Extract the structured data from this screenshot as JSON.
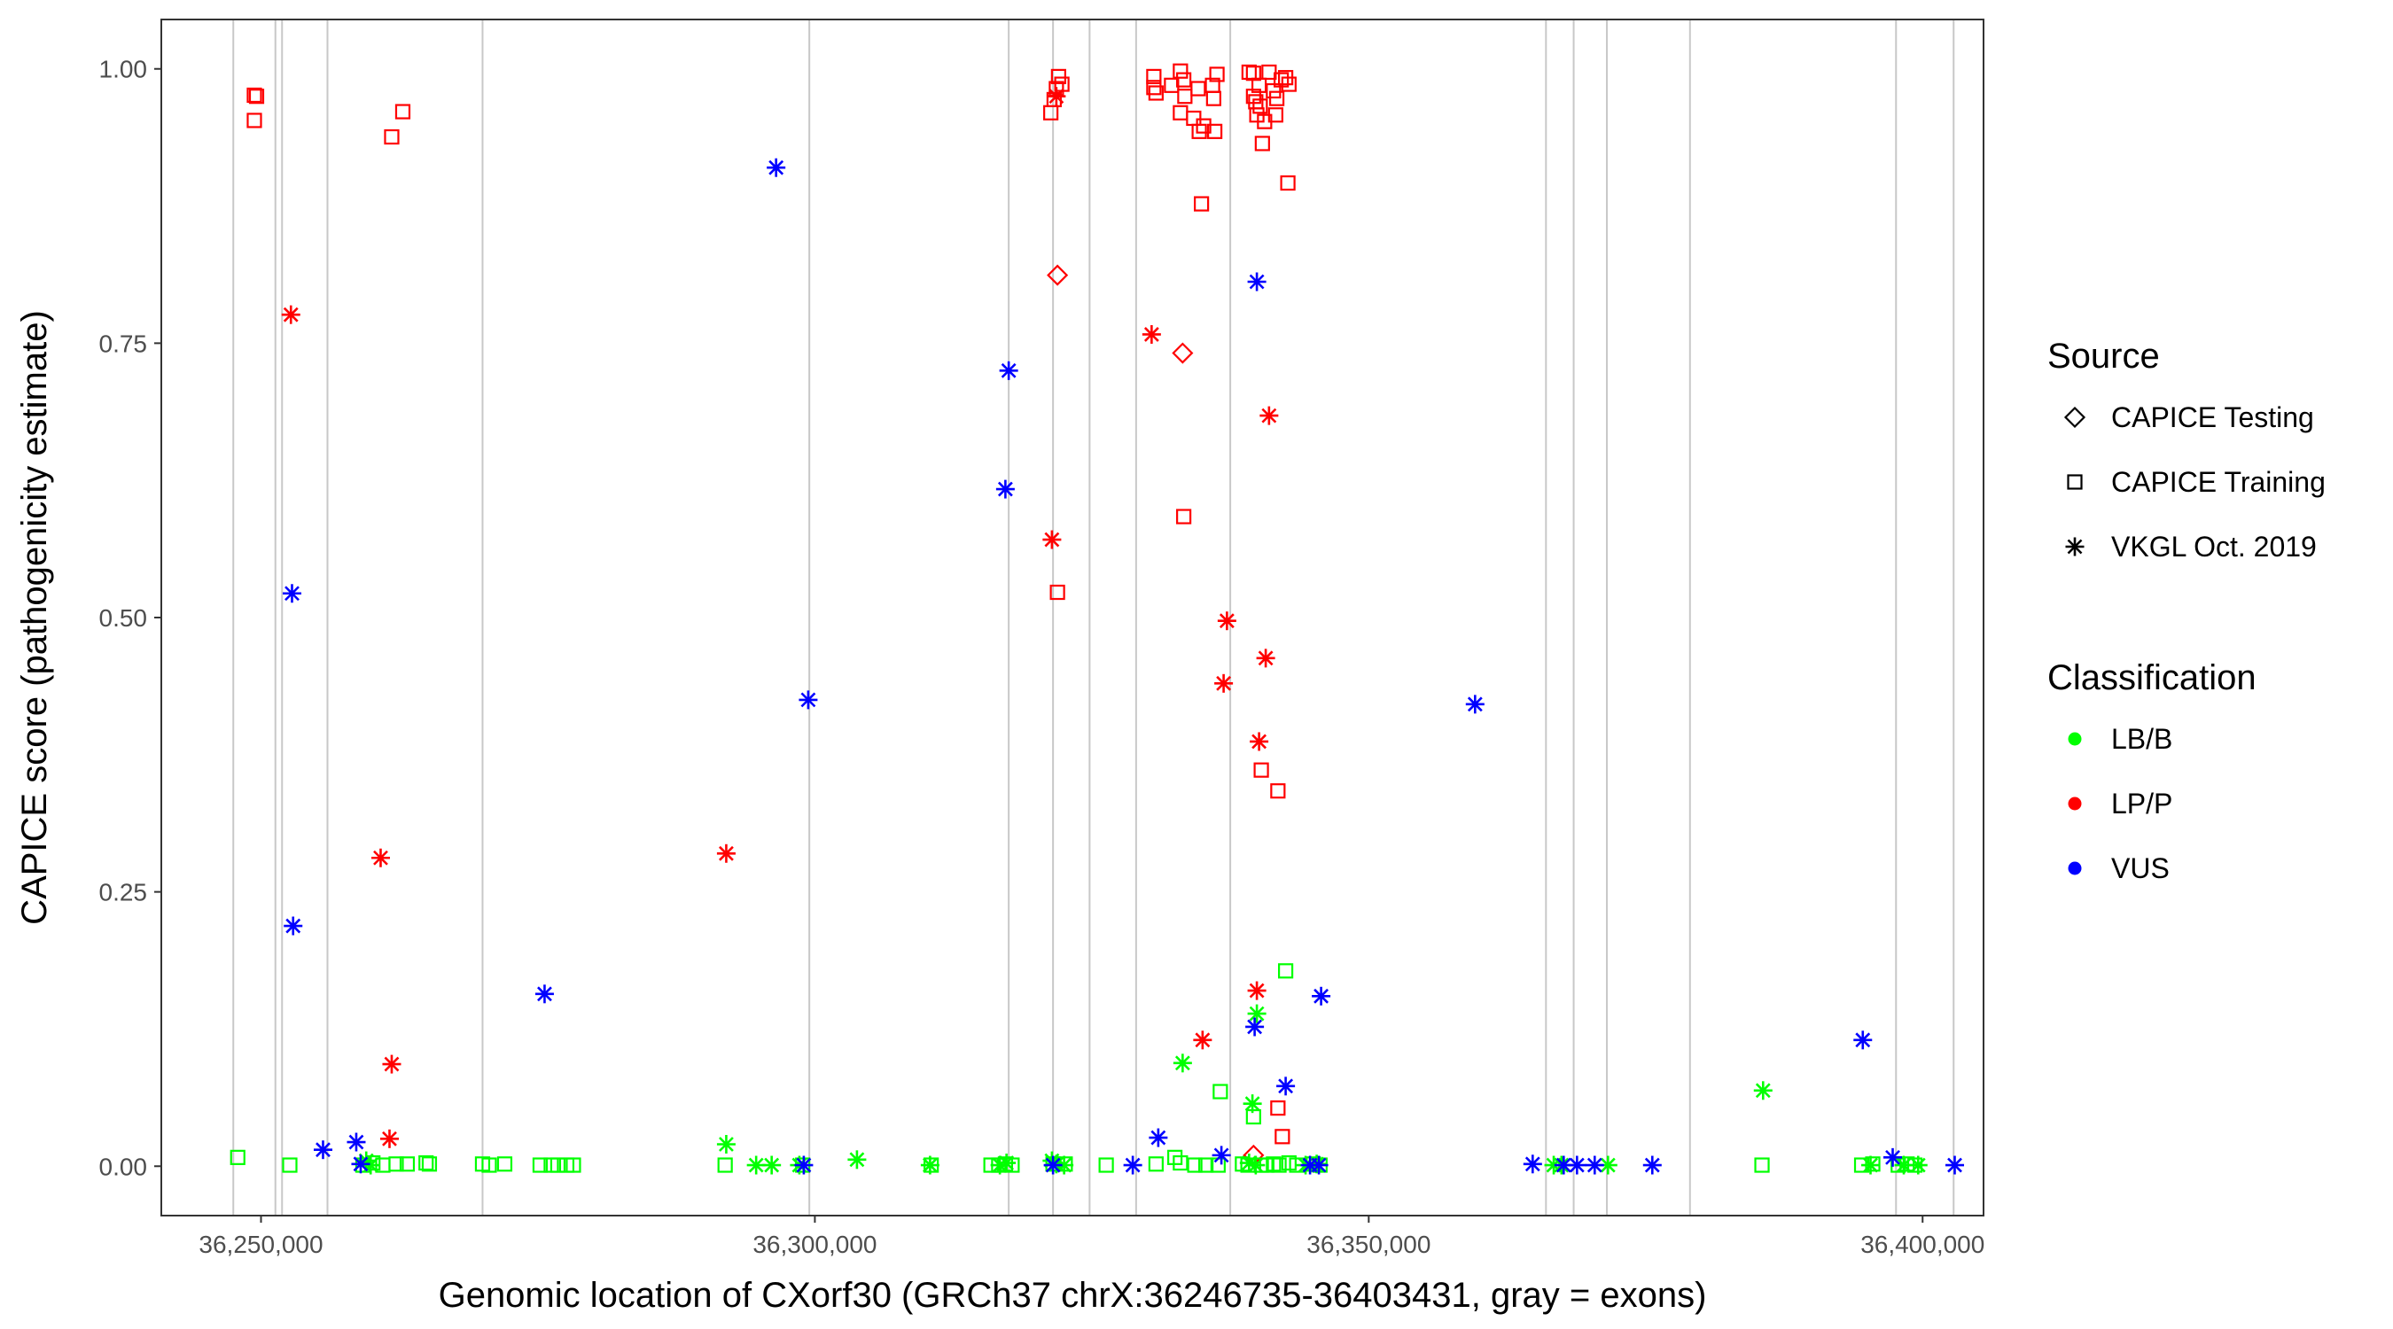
{
  "chart_data": {
    "type": "scatter",
    "title": "",
    "xlabel": "Genomic location of CXorf30 (GRCh37 chrX:36246735-36403431, gray = exons)",
    "ylabel": "CAPICE score (pathogenicity estimate)",
    "xlim": [
      36241000,
      36405500
    ],
    "ylim": [
      -0.045,
      1.045
    ],
    "x_ticks": [
      36250000,
      36300000,
      36350000,
      36400000
    ],
    "x_tick_labels": [
      "36,250,000",
      "36,300,000",
      "36,350,000",
      "36,400,000"
    ],
    "y_ticks": [
      0,
      0.25,
      0.5,
      0.75,
      1
    ],
    "y_tick_labels": [
      "0.00",
      "0.25",
      "0.50",
      "0.75",
      "1.00"
    ],
    "grid": false,
    "exon_lines": [
      36247500,
      36251300,
      36251900,
      36256000,
      36270000,
      36299500,
      36317500,
      36321500,
      36324800,
      36329000,
      36337500,
      36366000,
      36368500,
      36371500,
      36379000,
      36397600,
      36402800
    ],
    "color_map": {
      "LB/B": "#00ff00",
      "LP/P": "#ff0000",
      "VUS": "#0000ff"
    },
    "legend": {
      "placement": "right",
      "source_title": "Source",
      "source_items": [
        {
          "label": "CAPICE Testing",
          "shape": "diamond"
        },
        {
          "label": "CAPICE Training",
          "shape": "square"
        },
        {
          "label": "VKGL Oct. 2019",
          "shape": "asterisk"
        }
      ],
      "class_title": "Classification",
      "class_items": [
        {
          "label": "LB/B",
          "color": "#00ff00"
        },
        {
          "label": "LP/P",
          "color": "#ff0000"
        },
        {
          "label": "VUS",
          "color": "#0000ff"
        }
      ]
    },
    "series": [
      {
        "source": "CAPICE Training",
        "class": "LP/P",
        "shape": "square",
        "color": "#ff0000",
        "points": [
          [
            36249400,
            0.976
          ],
          [
            36249600,
            0.975
          ],
          [
            36249400,
            0.953
          ],
          [
            36261800,
            0.938
          ],
          [
            36262800,
            0.961
          ],
          [
            36321300,
            0.96
          ],
          [
            36321600,
            0.972
          ],
          [
            36321800,
            0.982
          ],
          [
            36322000,
            0.993
          ],
          [
            36322300,
            0.986
          ],
          [
            36321900,
            0.523
          ],
          [
            36330600,
            0.993
          ],
          [
            36330600,
            0.983
          ],
          [
            36330800,
            0.978
          ],
          [
            36332200,
            0.985
          ],
          [
            36333000,
            0.998
          ],
          [
            36333300,
            0.99
          ],
          [
            36333000,
            0.96
          ],
          [
            36333400,
            0.975
          ],
          [
            36334200,
            0.955
          ],
          [
            36334600,
            0.982
          ],
          [
            36334700,
            0.943
          ],
          [
            36334900,
            0.877
          ],
          [
            36335100,
            0.948
          ],
          [
            36335900,
            0.985
          ],
          [
            36336000,
            0.973
          ],
          [
            36336100,
            0.943
          ],
          [
            36336300,
            0.995
          ],
          [
            36333300,
            0.592
          ],
          [
            36339200,
            0.997
          ],
          [
            36339600,
            0.996
          ],
          [
            36339600,
            0.975
          ],
          [
            36339800,
            0.97
          ],
          [
            36340200,
            0.966
          ],
          [
            36339900,
            0.958
          ],
          [
            36340100,
            0.985
          ],
          [
            36340600,
            0.952
          ],
          [
            36340400,
            0.932
          ],
          [
            36341000,
            0.997
          ],
          [
            36341400,
            0.98
          ],
          [
            36341700,
            0.973
          ],
          [
            36341600,
            0.958
          ],
          [
            36342100,
            0.99
          ],
          [
            36342500,
            0.992
          ],
          [
            36342800,
            0.986
          ],
          [
            36342700,
            0.896
          ],
          [
            36340300,
            0.361
          ],
          [
            36341800,
            0.342
          ],
          [
            36341800,
            0.053
          ],
          [
            36342200,
            0.027
          ]
        ]
      },
      {
        "source": "CAPICE Testing",
        "class": "LP/P",
        "shape": "diamond",
        "color": "#ff0000",
        "points": [
          [
            36321900,
            0.812
          ],
          [
            36333200,
            0.741
          ],
          [
            36339600,
            0.01
          ]
        ]
      },
      {
        "source": "VKGL Oct. 2019",
        "class": "LP/P",
        "shape": "asterisk",
        "color": "#ff0000",
        "points": [
          [
            36252700,
            0.776
          ],
          [
            36260800,
            0.281
          ],
          [
            36261800,
            0.093
          ],
          [
            36261600,
            0.025
          ],
          [
            36292000,
            0.285
          ],
          [
            36321400,
            0.571
          ],
          [
            36321800,
            0.975
          ],
          [
            36330400,
            0.758
          ],
          [
            36335000,
            0.115
          ],
          [
            36337200,
            0.497
          ],
          [
            36336900,
            0.44
          ],
          [
            36341000,
            0.684
          ],
          [
            36340700,
            0.463
          ],
          [
            36340100,
            0.387
          ],
          [
            36339900,
            0.16
          ]
        ]
      },
      {
        "source": "CAPICE Training",
        "class": "LB/B",
        "shape": "square",
        "color": "#00ff00",
        "points": [
          [
            36247900,
            0.008
          ],
          [
            36252600,
            0.001
          ],
          [
            36259200,
            0.001
          ],
          [
            36260100,
            0.003
          ],
          [
            36261000,
            0.001
          ],
          [
            36262200,
            0.002
          ],
          [
            36263200,
            0.002
          ],
          [
            36264900,
            0.003
          ],
          [
            36265200,
            0.002
          ],
          [
            36270000,
            0.002
          ],
          [
            36270600,
            0.001
          ],
          [
            36272000,
            0.002
          ],
          [
            36275200,
            0.001
          ],
          [
            36276200,
            0.001
          ],
          [
            36276800,
            0.001
          ],
          [
            36277600,
            0.001
          ],
          [
            36278200,
            0.001
          ],
          [
            36291900,
            0.001
          ],
          [
            36298900,
            0.001
          ],
          [
            36310500,
            0.001
          ],
          [
            36315900,
            0.001
          ],
          [
            36316600,
            0.001
          ],
          [
            36317200,
            0.002
          ],
          [
            36317800,
            0.001
          ],
          [
            36321500,
            0.002
          ],
          [
            36322600,
            0.002
          ],
          [
            36326300,
            0.001
          ],
          [
            36330800,
            0.002
          ],
          [
            36332500,
            0.008
          ],
          [
            36333000,
            0.003
          ],
          [
            36334300,
            0.001
          ],
          [
            36335300,
            0.001
          ],
          [
            36336400,
            0.001
          ],
          [
            36336600,
            0.068
          ],
          [
            36339600,
            0.045
          ],
          [
            36338600,
            0.002
          ],
          [
            36339100,
            0.001
          ],
          [
            36340300,
            0.001
          ],
          [
            36340800,
            0.001
          ],
          [
            36341400,
            0.002
          ],
          [
            36341900,
            0.001
          ],
          [
            36342500,
            0.178
          ],
          [
            36342800,
            0.003
          ],
          [
            36343500,
            0.001
          ],
          [
            36345000,
            0.002
          ],
          [
            36345600,
            0.001
          ],
          [
            36385500,
            0.001
          ],
          [
            36394500,
            0.001
          ],
          [
            36395500,
            0.002
          ],
          [
            36397800,
            0.001
          ],
          [
            36398600,
            0.002
          ],
          [
            36399300,
            0.001
          ]
        ]
      },
      {
        "source": "VKGL Oct. 2019",
        "class": "LB/B",
        "shape": "asterisk",
        "color": "#00ff00",
        "points": [
          [
            36259500,
            0.005
          ],
          [
            36259900,
            0.001
          ],
          [
            36292000,
            0.02
          ],
          [
            36294700,
            0.001
          ],
          [
            36296100,
            0.001
          ],
          [
            36298600,
            0.001
          ],
          [
            36303800,
            0.006
          ],
          [
            36310400,
            0.001
          ],
          [
            36316700,
            0.001
          ],
          [
            36317300,
            0.003
          ],
          [
            36321400,
            0.005
          ],
          [
            36321800,
            0.002
          ],
          [
            36322500,
            0.001
          ],
          [
            36333200,
            0.094
          ],
          [
            36339500,
            0.057
          ],
          [
            36339900,
            0.139
          ],
          [
            36339200,
            0.003
          ],
          [
            36339800,
            0.001
          ],
          [
            36344300,
            0.001
          ],
          [
            36345300,
            0.002
          ],
          [
            36366700,
            0.001
          ],
          [
            36367400,
            0.001
          ],
          [
            36371600,
            0.001
          ],
          [
            36385600,
            0.069
          ],
          [
            36395300,
            0.001
          ],
          [
            36398300,
            0.001
          ],
          [
            36399600,
            0.001
          ]
        ]
      },
      {
        "source": "VKGL Oct. 2019",
        "class": "VUS",
        "shape": "asterisk",
        "color": "#0000ff",
        "points": [
          [
            36252800,
            0.522
          ],
          [
            36252900,
            0.219
          ],
          [
            36255600,
            0.015
          ],
          [
            36258600,
            0.022
          ],
          [
            36259000,
            0.002
          ],
          [
            36275600,
            0.157
          ],
          [
            36296500,
            0.91
          ],
          [
            36299400,
            0.425
          ],
          [
            36299000,
            0.001
          ],
          [
            36317500,
            0.725
          ],
          [
            36317200,
            0.617
          ],
          [
            36321500,
            0.001
          ],
          [
            36328700,
            0.001
          ],
          [
            36331000,
            0.026
          ],
          [
            36336700,
            0.01
          ],
          [
            36339900,
            0.806
          ],
          [
            36339700,
            0.127
          ],
          [
            36342500,
            0.073
          ],
          [
            36344700,
            0.001
          ],
          [
            36345700,
            0.155
          ],
          [
            36345500,
            0.001
          ],
          [
            36359600,
            0.421
          ],
          [
            36364800,
            0.002
          ],
          [
            36367600,
            0.001
          ],
          [
            36368800,
            0.001
          ],
          [
            36370400,
            0.001
          ],
          [
            36375600,
            0.001
          ],
          [
            36394600,
            0.115
          ],
          [
            36397300,
            0.008
          ],
          [
            36402900,
            0.001
          ]
        ]
      }
    ]
  }
}
